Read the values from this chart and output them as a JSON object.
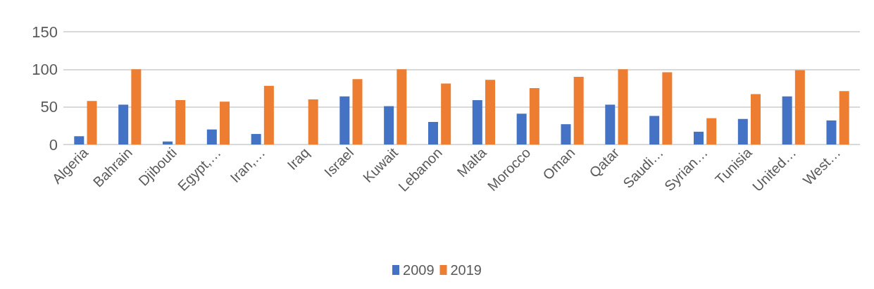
{
  "chart_data": {
    "type": "bar",
    "categories": [
      "Algeria",
      "Bahrain",
      "Djibouti",
      "Egypt,…",
      "Iran,…",
      "Iraq",
      "Israel",
      "Kuwait",
      "Lebanon",
      "Malta",
      "Morocco",
      "Oman",
      "Qatar",
      "Saudi…",
      "Syrian…",
      "Tunisia",
      "United…",
      "West…"
    ],
    "series": [
      {
        "name": "2009",
        "color": "#4472c4",
        "values": [
          11,
          53,
          4,
          20,
          14,
          null,
          64,
          51,
          30,
          59,
          41,
          27,
          53,
          38,
          17,
          34,
          64,
          32
        ]
      },
      {
        "name": "2019",
        "color": "#ed7d31",
        "values": [
          58,
          100,
          59,
          57,
          78,
          60,
          87,
          100,
          81,
          86,
          75,
          90,
          100,
          96,
          35,
          67,
          99,
          71
        ]
      }
    ],
    "ylim": [
      0,
      150
    ],
    "yticks": [
      0,
      50,
      100,
      150
    ],
    "grid": "y",
    "legend": "bottom"
  }
}
